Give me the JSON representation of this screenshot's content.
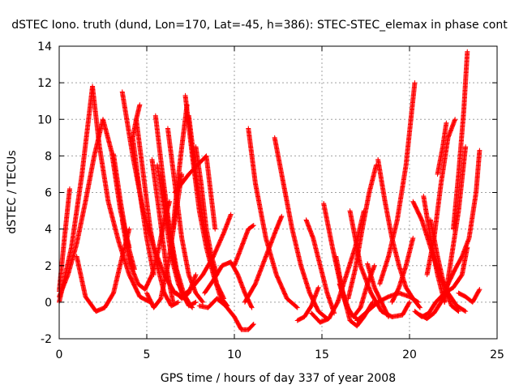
{
  "chart_data": {
    "type": "scatter",
    "title": "dSTEC Iono. truth (dund, Lon=170, Lat=-45, h=386): STEC-STEC_elemax in phase cont",
    "xlabel": "GPS time / hours of day 337 of year 2008",
    "ylabel": "dSTEC  / TECUs",
    "xlim": [
      0,
      25
    ],
    "ylim": [
      -2,
      14
    ],
    "xticks": [
      0,
      5,
      10,
      15,
      20,
      25
    ],
    "yticks": [
      -2,
      0,
      2,
      4,
      6,
      8,
      10,
      12,
      14
    ],
    "grid": true,
    "legend": "none",
    "marker": "+",
    "color": "#ff0000",
    "series": [
      {
        "x": [
          0.0,
          0.3,
          0.6
        ],
        "y": [
          0.6,
          3.5,
          6.2
        ]
      },
      {
        "x": [
          0.0,
          0.7,
          1.3,
          1.9
        ],
        "y": [
          0.0,
          3.0,
          7.0,
          11.8
        ]
      },
      {
        "x": [
          0.0,
          0.5,
          1.0,
          1.5,
          2.0,
          2.5,
          3.0,
          3.5,
          4.0
        ],
        "y": [
          0.3,
          1.5,
          3.2,
          5.5,
          8.0,
          10.0,
          8.2,
          5.0,
          3.0
        ]
      },
      {
        "x": [
          1.0,
          1.5,
          2.1,
          2.6,
          3.1,
          3.6,
          4.0
        ],
        "y": [
          2.5,
          0.3,
          -0.5,
          -0.3,
          0.5,
          2.5,
          4.0
        ]
      },
      {
        "x": [
          1.9,
          2.3,
          2.8,
          3.4,
          4.0,
          4.6,
          5.2
        ],
        "y": [
          11.8,
          8.5,
          5.5,
          3.3,
          1.5,
          0.3,
          0.0
        ]
      },
      {
        "x": [
          3.1,
          3.5,
          3.9,
          4.3
        ],
        "y": [
          8.1,
          5.5,
          3.2,
          1.8
        ]
      },
      {
        "x": [
          3.6,
          4.2,
          4.8,
          5.4,
          6.0,
          6.6,
          7.0
        ],
        "y": [
          11.5,
          8.0,
          5.0,
          3.0,
          1.5,
          0.5,
          0.3
        ]
      },
      {
        "x": [
          3.6,
          4.0,
          4.5,
          4.9,
          5.3,
          5.7,
          6.0,
          6.3
        ],
        "y": [
          4.5,
          2.2,
          1.0,
          0.7,
          1.5,
          3.0,
          4.5,
          5.5
        ]
      },
      {
        "x": [
          4.2,
          4.6,
          5.0,
          5.4
        ],
        "y": [
          9.0,
          6.0,
          3.5,
          1.5
        ]
      },
      {
        "x": [
          4.2,
          4.4,
          4.6
        ],
        "y": [
          9.0,
          10.0,
          10.8
        ]
      },
      {
        "x": [
          4.4,
          4.8,
          5.2,
          5.6,
          6.0,
          6.4,
          6.8
        ],
        "y": [
          10.0,
          7.0,
          4.0,
          2.0,
          0.5,
          -0.2,
          0.0
        ]
      },
      {
        "x": [
          5.0,
          5.4,
          5.8,
          6.2,
          6.6,
          7.0
        ],
        "y": [
          0.5,
          -0.3,
          0.2,
          2.0,
          4.5,
          7.0
        ]
      },
      {
        "x": [
          5.3,
          5.7,
          6.1,
          6.5
        ],
        "y": [
          7.8,
          5.0,
          2.0,
          0.0
        ]
      },
      {
        "x": [
          5.5,
          5.9,
          6.3,
          6.7,
          7.1,
          7.5
        ],
        "y": [
          10.2,
          7.0,
          4.0,
          1.8,
          0.5,
          -0.2
        ]
      },
      {
        "x": [
          5.6,
          6.0,
          6.4,
          6.8,
          7.2,
          7.6
        ],
        "y": [
          7.5,
          5.0,
          2.5,
          1.0,
          0.2,
          -0.3
        ]
      },
      {
        "x": [
          5.8,
          6.2,
          6.6,
          7.0,
          7.4,
          7.8
        ],
        "y": [
          7.0,
          4.5,
          2.0,
          0.5,
          -0.2,
          0.0
        ]
      },
      {
        "x": [
          6.2,
          6.6,
          7.0,
          7.4,
          7.8,
          8.2
        ],
        "y": [
          9.5,
          6.5,
          3.5,
          1.5,
          0.5,
          0.0
        ]
      },
      {
        "x": [
          6.5,
          6.7,
          7.0,
          7.3
        ],
        "y": [
          4.0,
          6.0,
          8.5,
          10.8
        ]
      },
      {
        "x": [
          6.7,
          7.0,
          7.4,
          7.8
        ],
        "y": [
          0.5,
          0.2,
          0.5,
          1.5
        ]
      },
      {
        "x": [
          6.6,
          7.0,
          7.4,
          7.9,
          8.4,
          8.9
        ],
        "y": [
          6.0,
          6.5,
          7.0,
          7.5,
          8.0,
          4.0
        ]
      },
      {
        "x": [
          7.2,
          7.6,
          8.0,
          8.4,
          8.8,
          9.2,
          9.6
        ],
        "y": [
          11.3,
          8.0,
          5.0,
          3.0,
          1.5,
          0.3,
          -0.2
        ]
      },
      {
        "x": [
          7.4,
          7.8,
          8.2,
          8.6,
          9.0,
          9.4
        ],
        "y": [
          10.2,
          7.0,
          4.5,
          2.5,
          1.0,
          0.2
        ]
      },
      {
        "x": [
          7.8,
          8.1,
          8.4,
          8.7,
          9.0
        ],
        "y": [
          8.5,
          6.5,
          4.0,
          2.5,
          1.5
        ]
      },
      {
        "x": [
          7.0,
          7.6,
          8.2,
          8.8,
          9.4,
          9.8
        ],
        "y": [
          0.3,
          0.8,
          1.5,
          2.5,
          3.8,
          4.8
        ]
      },
      {
        "x": [
          8.3,
          8.8,
          9.3,
          9.8,
          10.2,
          10.6,
          11.0
        ],
        "y": [
          0.5,
          1.2,
          2.0,
          2.2,
          1.5,
          0.5,
          -0.3
        ]
      },
      {
        "x": [
          8.0,
          8.5,
          9.0,
          9.5,
          10.0,
          10.4,
          10.8,
          11.1
        ],
        "y": [
          -0.2,
          -0.3,
          0.2,
          -0.2,
          -0.8,
          -1.5,
          -1.5,
          -1.2
        ]
      },
      {
        "x": [
          10.0,
          10.4,
          10.8,
          11.1
        ],
        "y": [
          2.0,
          3.0,
          4.0,
          4.2
        ]
      },
      {
        "x": [
          10.8,
          11.2,
          11.8,
          12.4,
          13.0,
          13.6
        ],
        "y": [
          9.5,
          6.5,
          3.5,
          1.5,
          0.2,
          -0.3
        ]
      },
      {
        "x": [
          10.6,
          11.2,
          11.8,
          12.4,
          12.7
        ],
        "y": [
          0.0,
          1.0,
          2.5,
          4.0,
          4.7
        ]
      },
      {
        "x": [
          12.3,
          12.8,
          13.3,
          13.8,
          14.3,
          14.8,
          15.3
        ],
        "y": [
          9.0,
          6.5,
          4.0,
          2.0,
          0.5,
          -0.5,
          -0.9
        ]
      },
      {
        "x": [
          13.6,
          14.0,
          14.4,
          14.8
        ],
        "y": [
          -1.0,
          -0.8,
          -0.2,
          0.8
        ]
      },
      {
        "x": [
          14.1,
          14.5,
          14.9,
          15.3,
          15.7
        ],
        "y": [
          4.5,
          3.5,
          2.0,
          0.5,
          -0.6
        ]
      },
      {
        "x": [
          14.4,
          14.9,
          15.4,
          15.9,
          16.4,
          16.9,
          17.4
        ],
        "y": [
          -0.6,
          -1.1,
          -0.9,
          0.0,
          1.5,
          3.0,
          5.0
        ]
      },
      {
        "x": [
          15.1,
          15.6,
          16.1,
          16.6,
          17.1
        ],
        "y": [
          5.4,
          3.0,
          0.8,
          -0.6,
          -1.0
        ]
      },
      {
        "x": [
          15.8,
          16.2,
          16.6,
          17.0,
          17.4,
          17.9
        ],
        "y": [
          2.5,
          0.5,
          -1.0,
          -1.3,
          -0.8,
          0.0
        ]
      },
      {
        "x": [
          16.0,
          16.4,
          16.8,
          17.2,
          17.6,
          18.0
        ],
        "y": [
          1.0,
          -0.2,
          -0.8,
          -0.3,
          1.0,
          2.0
        ]
      },
      {
        "x": [
          16.5,
          16.9,
          17.3,
          17.7,
          18.1
        ],
        "y": [
          0.2,
          1.8,
          4.0,
          6.0,
          7.5
        ]
      },
      {
        "x": [
          16.6,
          17.2,
          17.8,
          18.4,
          19.0,
          19.6,
          20.0
        ],
        "y": [
          5.0,
          2.0,
          0.5,
          -0.5,
          -0.8,
          -0.7,
          0.0
        ]
      },
      {
        "x": [
          17.6,
          18.0,
          18.4,
          18.8
        ],
        "y": [
          2.1,
          0.8,
          0.0,
          -0.8
        ]
      },
      {
        "x": [
          17.0,
          17.6,
          18.2,
          18.8,
          19.4,
          20.0,
          20.5
        ],
        "y": [
          -1.0,
          -0.5,
          0.0,
          0.3,
          0.5,
          0.3,
          0.0
        ]
      },
      {
        "x": [
          18.3,
          18.8,
          19.3,
          19.8,
          20.3
        ],
        "y": [
          1.0,
          2.5,
          4.5,
          7.5,
          12.0
        ]
      },
      {
        "x": [
          18.2,
          18.6,
          19.0,
          19.4,
          19.8,
          20.2,
          20.6
        ],
        "y": [
          7.8,
          5.5,
          3.5,
          2.0,
          0.8,
          0.2,
          -0.3
        ]
      },
      {
        "x": [
          19.0,
          19.4,
          19.8,
          20.2
        ],
        "y": [
          0.0,
          0.8,
          2.0,
          3.5
        ]
      },
      {
        "x": [
          20.2,
          20.7,
          21.2,
          21.7,
          22.2,
          22.7,
          23.2
        ],
        "y": [
          5.5,
          4.5,
          3.0,
          1.5,
          0.5,
          -0.2,
          -0.5
        ]
      },
      {
        "x": [
          20.6,
          21.0,
          21.4,
          21.8,
          22.2
        ],
        "y": [
          -0.7,
          -0.9,
          -0.6,
          0.0,
          1.0
        ]
      },
      {
        "x": [
          20.8,
          21.2,
          21.6,
          22.0
        ],
        "y": [
          5.8,
          3.5,
          1.5,
          0.0
        ]
      },
      {
        "x": [
          21.0,
          21.4,
          21.8,
          22.2,
          22.6
        ],
        "y": [
          1.5,
          3.5,
          6.5,
          9.0,
          10.0
        ]
      },
      {
        "x": [
          21.2,
          21.6,
          22.0,
          22.4,
          22.8
        ],
        "y": [
          4.5,
          2.5,
          0.8,
          -0.2,
          -0.5
        ]
      },
      {
        "x": [
          21.6,
          21.9,
          22.1
        ],
        "y": [
          7.0,
          8.5,
          9.8
        ]
      },
      {
        "x": [
          22.0,
          22.4,
          22.8,
          23.2
        ],
        "y": [
          0.0,
          2.5,
          5.0,
          8.5
        ]
      },
      {
        "x": [
          22.5,
          22.8,
          23.1,
          23.3
        ],
        "y": [
          4.0,
          7.0,
          10.5,
          13.7
        ]
      },
      {
        "x": [
          22.2,
          22.6,
          23.0,
          23.4,
          23.8,
          24.0
        ],
        "y": [
          1.0,
          1.8,
          2.5,
          3.5,
          6.0,
          8.3
        ]
      },
      {
        "x": [
          22.8,
          23.2,
          23.6,
          24.0
        ],
        "y": [
          0.5,
          0.3,
          0.0,
          0.7
        ]
      },
      {
        "x": [
          20.3,
          20.7,
          21.1,
          21.5,
          22.0,
          22.5,
          23.0,
          23.3
        ],
        "y": [
          -0.5,
          -0.8,
          -0.6,
          0.0,
          0.5,
          0.8,
          1.5,
          3.0
        ]
      }
    ]
  }
}
